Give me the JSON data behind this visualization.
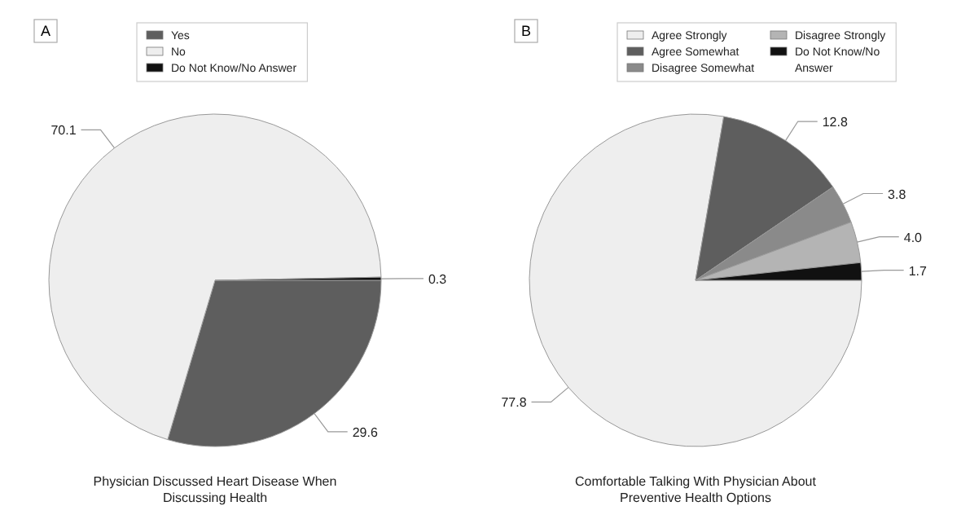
{
  "chart_data": [
    {
      "type": "pie",
      "title": "Physician Discussed Heart Disease When Discussing Health",
      "annotations": [
        "A"
      ],
      "legend": "top",
      "data_labels": true,
      "categories": [
        "Yes",
        "No",
        "Do Not Know/No Answer"
      ],
      "values": [
        29.6,
        70.1,
        0.3
      ],
      "colors": [
        "#5e5e5e",
        "#eeeeee",
        "#111111"
      ]
    },
    {
      "type": "pie",
      "title": "Comfortable Talking With Physician About Preventive Health Options",
      "annotations": [
        "B"
      ],
      "legend": "top",
      "data_labels": true,
      "categories": [
        "Agree Strongly",
        "Agree Somewhat",
        "Disagree Somewhat",
        "Disagree Strongly",
        "Do Not Know/No Answer"
      ],
      "values": [
        77.8,
        12.8,
        3.8,
        4.0,
        1.7
      ],
      "value_labels": [
        "77.8",
        "12.8",
        "3.8",
        "4.0",
        "1.7"
      ],
      "colors": [
        "#eeeeee",
        "#5e5e5e",
        "#8a8a8a",
        "#b4b4b4",
        "#111111"
      ]
    }
  ]
}
